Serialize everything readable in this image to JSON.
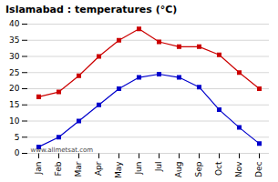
{
  "chart_data": {
    "type": "line",
    "title": "Islamabad : temperatures (°C)",
    "categories": [
      "Jan",
      "Feb",
      "Mar",
      "Apr",
      "May",
      "Jun",
      "Jul",
      "Aug",
      "Sep",
      "Oct",
      "Nov",
      "Dec"
    ],
    "series": [
      {
        "color": "#cc0000",
        "marker": "square",
        "values": [
          17.5,
          19.0,
          24.0,
          30.0,
          35.0,
          38.5,
          34.5,
          33.0,
          33.0,
          30.5,
          25.0,
          20.0
        ]
      },
      {
        "color": "#0000cc",
        "marker": "square",
        "values": [
          2.0,
          5.0,
          10.0,
          15.0,
          20.0,
          23.5,
          24.5,
          23.5,
          20.5,
          13.5,
          8.0,
          3.0
        ]
      }
    ],
    "ylim": [
      0,
      40
    ],
    "yticks": [
      0,
      5,
      10,
      15,
      20,
      25,
      30,
      35,
      40
    ],
    "grid": "y",
    "annotations": [
      "www.allmetsat.com"
    ]
  }
}
